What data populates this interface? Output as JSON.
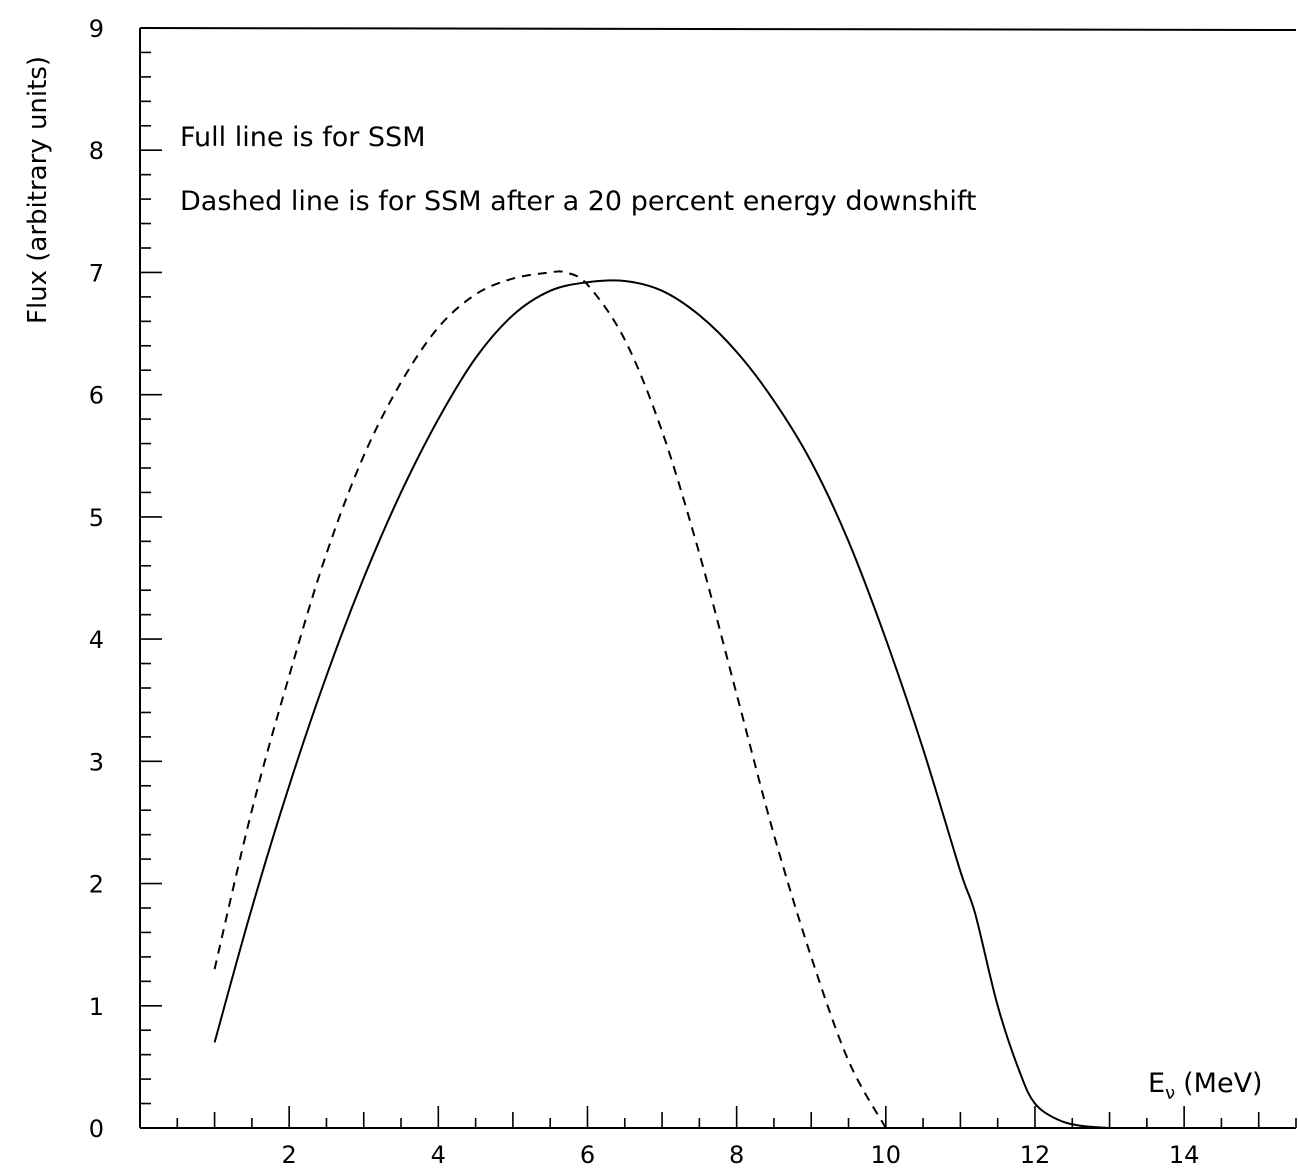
{
  "chart_data": {
    "type": "line",
    "title": "",
    "ylabel": "Flux (arbitrary units)",
    "xlabel": "Eν (MeV)",
    "xlabel_main": "E",
    "xlabel_sub": "ν",
    "xlabel_unit": "(MeV)",
    "xlim": [
      0,
      15.5
    ],
    "ylim": [
      0,
      9
    ],
    "grid": false,
    "x_ticks": [
      2,
      4,
      6,
      8,
      10,
      12,
      14
    ],
    "y_ticks": [
      0,
      1,
      2,
      3,
      4,
      5,
      6,
      7,
      8,
      9
    ],
    "annotations": [
      "Full line is for SSM",
      "Dashed line is for SSM after a 20 percent energy downshift"
    ],
    "series": [
      {
        "style": "solid",
        "x": [
          1.0,
          1.5,
          2.0,
          2.5,
          3.0,
          3.5,
          4.0,
          4.5,
          5.0,
          5.5,
          6.0,
          6.5,
          7.0,
          7.5,
          8.0,
          8.5,
          9.0,
          9.5,
          10.0,
          10.5,
          11.0,
          11.2,
          11.5,
          11.8,
          12.0,
          12.3,
          12.6,
          13.0
        ],
        "y": [
          0.7,
          1.8,
          2.8,
          3.7,
          4.5,
          5.2,
          5.8,
          6.3,
          6.65,
          6.85,
          6.92,
          6.93,
          6.85,
          6.65,
          6.35,
          5.95,
          5.45,
          4.8,
          4.0,
          3.1,
          2.1,
          1.75,
          1.0,
          0.45,
          0.2,
          0.07,
          0.02,
          0.0
        ]
      },
      {
        "style": "dashed",
        "x": [
          1.0,
          1.5,
          2.0,
          2.5,
          3.0,
          3.5,
          4.0,
          4.5,
          5.0,
          5.5,
          5.7,
          6.0,
          6.5,
          7.0,
          7.5,
          8.0,
          8.5,
          9.0,
          9.5,
          10.0
        ],
        "y": [
          1.3,
          2.6,
          3.7,
          4.7,
          5.5,
          6.1,
          6.55,
          6.82,
          6.95,
          7.0,
          7.0,
          6.9,
          6.45,
          5.7,
          4.7,
          3.55,
          2.4,
          1.4,
          0.55,
          0.0
        ]
      }
    ]
  }
}
